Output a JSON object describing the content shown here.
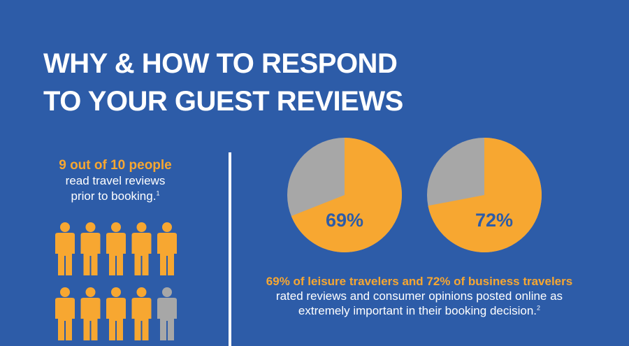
{
  "header": {
    "title_line1": "WHY & HOW TO RESPOND",
    "title_line2": "TO YOUR GUEST REVIEWS"
  },
  "left_stat": {
    "headline": "9 out of 10 people",
    "line1": "read travel reviews",
    "line2": "prior to booking.",
    "footnote": "1",
    "people_total": 10,
    "people_highlighted": 9
  },
  "pies": [
    {
      "value": 69,
      "label": "69%"
    },
    {
      "value": 72,
      "label": "72%"
    }
  ],
  "right_caption": {
    "headline": "69% of leisure travelers and 72% of business travelers",
    "line1": "rated reviews and consumer opinions posted online as",
    "line2": "extremely important in their booking decision.",
    "footnote": "2"
  },
  "colors": {
    "background": "#2d5ca8",
    "accent": "#f7a731",
    "muted": "#a7a7a7",
    "text": "#ffffff"
  }
}
